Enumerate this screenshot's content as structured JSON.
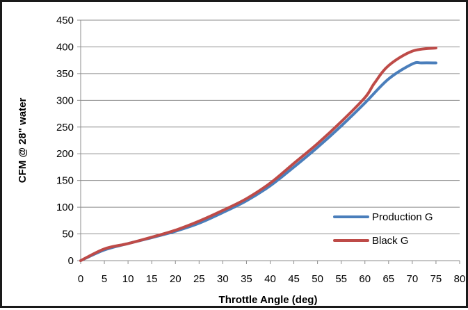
{
  "chart_data": {
    "type": "line",
    "title": "",
    "xlabel": "Throttle Angle (deg)",
    "ylabel": "CFM @ 28\" water",
    "xlim": [
      0,
      80
    ],
    "ylim": [
      0,
      450
    ],
    "xticks": [
      0,
      5,
      10,
      15,
      20,
      25,
      30,
      35,
      40,
      45,
      50,
      55,
      60,
      65,
      70,
      75,
      80
    ],
    "yticks": [
      0,
      50,
      100,
      150,
      200,
      250,
      300,
      350,
      400,
      450
    ],
    "grid": {
      "horizontal": true,
      "vertical": false
    },
    "legend_position": "bottom-right",
    "series": [
      {
        "name": "Production G",
        "color": "#4a7ebb",
        "x": [
          0,
          5,
          10,
          15,
          20,
          25,
          30,
          35,
          40,
          45,
          50,
          55,
          60,
          65,
          70,
          72,
          75
        ],
        "y": [
          0,
          20,
          32,
          43,
          55,
          70,
          90,
          112,
          140,
          175,
          212,
          252,
          295,
          340,
          368,
          370,
          370
        ]
      },
      {
        "name": "Black G",
        "color": "#be4b48",
        "x": [
          0,
          5,
          10,
          15,
          20,
          25,
          30,
          35,
          40,
          45,
          50,
          55,
          60,
          62,
          65,
          70,
          75
        ],
        "y": [
          0,
          22,
          32,
          44,
          57,
          74,
          94,
          116,
          145,
          182,
          219,
          260,
          305,
          332,
          365,
          392,
          398
        ]
      }
    ]
  }
}
